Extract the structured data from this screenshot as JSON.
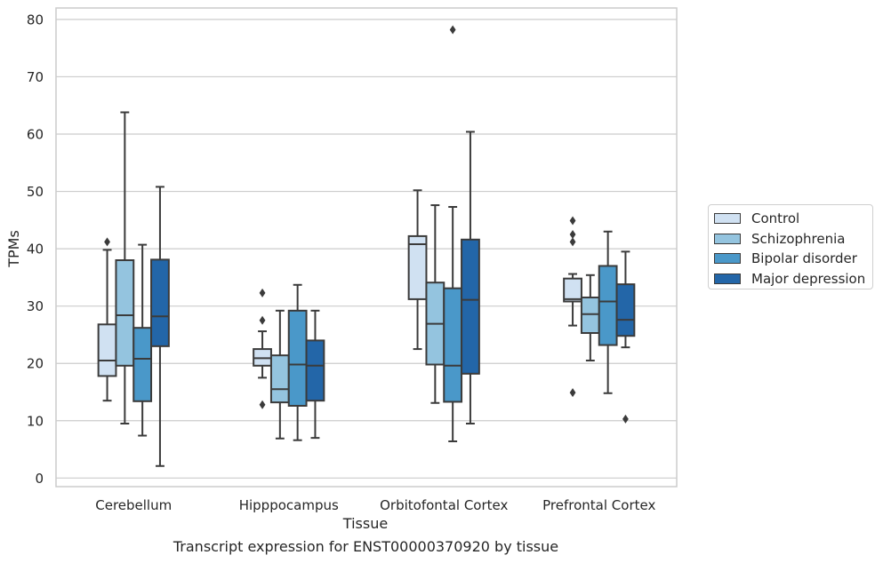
{
  "chart_data": {
    "type": "box",
    "title": "Transcript expression for ENST00000370920 by tissue",
    "xlabel": "Tissue",
    "ylabel": "TPMs",
    "ylim": [
      -1.5,
      82
    ],
    "yticks": [
      0,
      10,
      20,
      30,
      40,
      50,
      60,
      70,
      80
    ],
    "grid": "horizontal",
    "legend_position": "right",
    "categories": [
      "Cerebellum",
      "Hipppocampus",
      "Orbitofontal Cortex",
      "Prefrontal Cortex"
    ],
    "series": [
      {
        "name": "Control",
        "color": "#d0e1f2",
        "boxes": [
          {
            "whislo": 13.5,
            "q1": 17.8,
            "med": 20.5,
            "q3": 26.8,
            "whishi": 39.8,
            "fliers": [
              41.2
            ]
          },
          {
            "whislo": 17.5,
            "q1": 19.6,
            "med": 20.9,
            "q3": 22.5,
            "whishi": 25.6,
            "fliers": [
              27.5,
              32.3,
              12.8
            ]
          },
          {
            "whislo": 22.5,
            "q1": 31.2,
            "med": 40.8,
            "q3": 42.2,
            "whishi": 50.2,
            "fliers": []
          },
          {
            "whislo": 26.6,
            "q1": 30.8,
            "med": 31.2,
            "q3": 34.8,
            "whishi": 35.6,
            "fliers": [
              41.2,
              42.5,
              44.9,
              14.9
            ]
          }
        ]
      },
      {
        "name": "Schizophrenia",
        "color": "#94c4df",
        "boxes": [
          {
            "whislo": 9.5,
            "q1": 19.6,
            "med": 28.4,
            "q3": 38.0,
            "whishi": 63.8,
            "fliers": []
          },
          {
            "whislo": 6.9,
            "q1": 13.2,
            "med": 15.5,
            "q3": 21.4,
            "whishi": 29.2,
            "fliers": []
          },
          {
            "whislo": 13.1,
            "q1": 19.8,
            "med": 26.9,
            "q3": 34.1,
            "whishi": 47.6,
            "fliers": []
          },
          {
            "whislo": 20.5,
            "q1": 25.3,
            "med": 28.6,
            "q3": 31.5,
            "whishi": 35.4,
            "fliers": []
          }
        ]
      },
      {
        "name": "Bipolar disorder",
        "color": "#4a98c9",
        "boxes": [
          {
            "whislo": 7.4,
            "q1": 13.4,
            "med": 20.8,
            "q3": 26.2,
            "whishi": 40.7,
            "fliers": []
          },
          {
            "whislo": 6.6,
            "q1": 12.6,
            "med": 19.8,
            "q3": 29.2,
            "whishi": 33.7,
            "fliers": []
          },
          {
            "whislo": 6.4,
            "q1": 13.3,
            "med": 19.6,
            "q3": 33.1,
            "whishi": 47.3,
            "fliers": [
              78.2
            ]
          },
          {
            "whislo": 14.8,
            "q1": 23.2,
            "med": 30.8,
            "q3": 37.0,
            "whishi": 43.0,
            "fliers": []
          }
        ]
      },
      {
        "name": "Major depression",
        "color": "#2366a8",
        "boxes": [
          {
            "whislo": 2.1,
            "q1": 23.0,
            "med": 28.2,
            "q3": 38.1,
            "whishi": 50.8,
            "fliers": []
          },
          {
            "whislo": 7.0,
            "q1": 13.5,
            "med": 19.6,
            "q3": 24.0,
            "whishi": 29.2,
            "fliers": []
          },
          {
            "whislo": 9.5,
            "q1": 18.2,
            "med": 31.1,
            "q3": 41.6,
            "whishi": 60.4,
            "fliers": []
          },
          {
            "whislo": 22.8,
            "q1": 24.8,
            "med": 27.6,
            "q3": 33.8,
            "whishi": 39.5,
            "fliers": [
              10.3
            ]
          }
        ]
      }
    ]
  }
}
